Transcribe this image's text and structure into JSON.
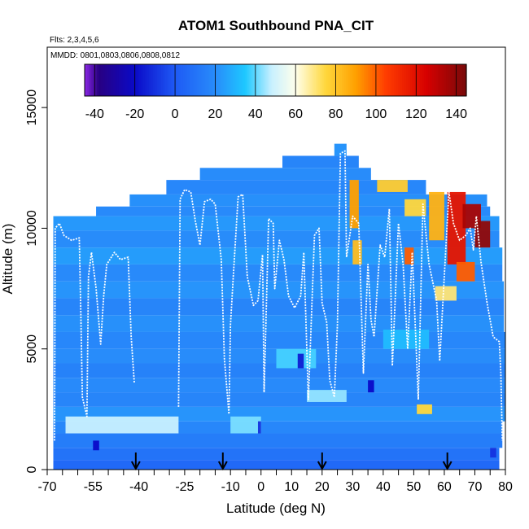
{
  "chart_data": {
    "type": "heatmap",
    "title": "ATOM1 Southbound PNA_CIT",
    "flights_label": "Flts: 2,3,4,5,6",
    "dates_label": "MMDD: 0801,0803,0806,0808,0812",
    "xlabel": "Latitude (deg N)",
    "ylabel": "Altitude (m)",
    "xlim": [
      -70,
      80
    ],
    "ylim": [
      0,
      17500
    ],
    "x_ticks": [
      -70,
      -55,
      -40,
      -25,
      -10,
      0,
      10,
      20,
      30,
      40,
      50,
      60,
      70,
      80
    ],
    "x_minor_ticks": [
      -65,
      -60,
      -50,
      -45,
      -35,
      -30,
      -20,
      -15,
      -5,
      5,
      15,
      25,
      35,
      45,
      55,
      65,
      75
    ],
    "y_ticks": [
      0,
      5000,
      10000,
      15000
    ],
    "colorbar": {
      "min": -45,
      "max": 145,
      "ticks": [
        -40,
        -20,
        0,
        20,
        40,
        60,
        80,
        100,
        120,
        140
      ],
      "boundaries": [
        -45,
        -40,
        -20,
        0,
        20,
        40,
        60,
        80,
        100,
        120,
        140,
        145
      ]
    },
    "arrow_latitudes": [
      -41,
      -12.5,
      20,
      61
    ],
    "flight_profiles": [
      {
        "name": "profile-1",
        "points": [
          [
            -67.6,
            1200
          ],
          [
            -67.4,
            10000
          ],
          [
            -66,
            10200
          ],
          [
            -64.5,
            9700
          ],
          [
            -62,
            9500
          ],
          [
            -59.5,
            9600
          ],
          [
            -59,
            6500
          ],
          [
            -58.5,
            3000
          ],
          [
            -57,
            2200
          ],
          [
            -56.5,
            8000
          ],
          [
            -55.5,
            9000
          ],
          [
            -54,
            7500
          ],
          [
            -52.5,
            5200
          ],
          [
            -51.5,
            7200
          ],
          [
            -50.5,
            8500
          ],
          [
            -48,
            9000
          ],
          [
            -46,
            8700
          ],
          [
            -43.5,
            8800
          ],
          [
            -42.5,
            5500
          ],
          [
            -41.5,
            3600
          ]
        ]
      },
      {
        "name": "profile-2",
        "points": [
          [
            -27,
            2600
          ],
          [
            -26.5,
            11200
          ],
          [
            -25,
            11600
          ],
          [
            -23,
            11500
          ],
          [
            -21.5,
            10300
          ],
          [
            -20,
            9300
          ],
          [
            -18.5,
            11100
          ],
          [
            -16.5,
            11200
          ],
          [
            -15,
            11000
          ],
          [
            -13,
            8700
          ],
          [
            -12,
            4600
          ],
          [
            -10.5,
            2300
          ],
          [
            -10,
            6000
          ],
          [
            -9,
            8200
          ],
          [
            -7.5,
            11300
          ],
          [
            -6,
            11400
          ],
          [
            -4.5,
            8000
          ],
          [
            -2.5,
            6800
          ],
          [
            -1,
            7000
          ],
          [
            0.5,
            8900
          ],
          [
            1,
            3200
          ],
          [
            2.5,
            10400
          ],
          [
            4,
            10200
          ],
          [
            4.5,
            7500
          ],
          [
            6,
            9500
          ],
          [
            7.5,
            8700
          ],
          [
            9,
            7200
          ],
          [
            11,
            6700
          ],
          [
            13,
            7200
          ],
          [
            14,
            9000
          ],
          [
            15.5,
            2900
          ],
          [
            17.5,
            9700
          ],
          [
            19,
            10000
          ],
          [
            20,
            6900
          ],
          [
            21.5,
            6100
          ],
          [
            22.5,
            3700
          ],
          [
            24,
            3000
          ],
          [
            25,
            6000
          ],
          [
            26,
            13100
          ],
          [
            27.5,
            13200
          ],
          [
            28,
            8800
          ],
          [
            30,
            10500
          ],
          [
            32,
            10200
          ],
          [
            33.5,
            4000
          ],
          [
            35,
            8500
          ],
          [
            36,
            6200
          ],
          [
            37,
            5500
          ],
          [
            39,
            9300
          ],
          [
            40.5,
            8800
          ],
          [
            42,
            10800
          ],
          [
            43,
            4300
          ],
          [
            45,
            10200
          ],
          [
            46.5,
            8500
          ],
          [
            48,
            5000
          ],
          [
            49.5,
            9000
          ],
          [
            51.5,
            2900
          ],
          [
            53,
            11000
          ],
          [
            55,
            8500
          ],
          [
            57.5,
            7000
          ],
          [
            58.5,
            4500
          ],
          [
            60,
            8000
          ],
          [
            61.5,
            11500
          ],
          [
            63,
            10200
          ],
          [
            65,
            9500
          ],
          [
            67,
            9700
          ],
          [
            68.5,
            10000
          ],
          [
            69.5,
            9100
          ],
          [
            70.5,
            10500
          ],
          [
            72,
            8600
          ],
          [
            74,
            6900
          ],
          [
            76,
            5500
          ],
          [
            78,
            5300
          ],
          [
            78.5,
            4000
          ],
          [
            79,
            1200
          ]
        ]
      }
    ],
    "curtain_bands": [
      {
        "alt_bottom": 0,
        "alt_top": 400,
        "xmin": -68,
        "xmax": 78,
        "value": 6
      },
      {
        "alt_bottom": 400,
        "alt_top": 900,
        "xmin": -68,
        "xmax": 78,
        "value": 10
      },
      {
        "alt_bottom": 900,
        "alt_top": 1500,
        "xmin": -68,
        "xmax": 79,
        "value": 14
      },
      {
        "alt_bottom": 1500,
        "alt_top": 2000,
        "xmin": -68,
        "xmax": 79,
        "value": 18
      },
      {
        "alt_bottom": 2000,
        "alt_top": 2600,
        "xmin": -68,
        "xmax": 80,
        "value": 22
      },
      {
        "alt_bottom": 2600,
        "alt_top": 3200,
        "xmin": -68,
        "xmax": 80,
        "value": 17
      },
      {
        "alt_bottom": 3200,
        "alt_top": 3800,
        "xmin": -68,
        "xmax": 80,
        "value": 19
      },
      {
        "alt_bottom": 3800,
        "alt_top": 4400,
        "xmin": -68,
        "xmax": 80,
        "value": 16
      },
      {
        "alt_bottom": 4400,
        "alt_top": 5000,
        "xmin": -68,
        "xmax": 80,
        "value": 20
      },
      {
        "alt_bottom": 5000,
        "alt_top": 5700,
        "xmin": -68,
        "xmax": 80,
        "value": 18
      },
      {
        "alt_bottom": 5700,
        "alt_top": 6400,
        "xmin": -68,
        "xmax": 79.5,
        "value": 21
      },
      {
        "alt_bottom": 6400,
        "alt_top": 7100,
        "xmin": -68,
        "xmax": 79.5,
        "value": 17
      },
      {
        "alt_bottom": 7100,
        "alt_top": 7800,
        "xmin": -68,
        "xmax": 79.5,
        "value": 22
      },
      {
        "alt_bottom": 7800,
        "alt_top": 8500,
        "xmin": -68,
        "xmax": 79,
        "value": 19
      },
      {
        "alt_bottom": 8500,
        "alt_top": 9200,
        "xmin": -68,
        "xmax": 79,
        "value": 24
      },
      {
        "alt_bottom": 9200,
        "alt_top": 9900,
        "xmin": -68,
        "xmax": 78,
        "value": 20
      },
      {
        "alt_bottom": 9900,
        "alt_top": 10500,
        "xmin": -68,
        "xmax": 78,
        "value": 23
      },
      {
        "alt_bottom": 10500,
        "alt_top": 10900,
        "xmin": -54,
        "xmax": 75,
        "value": 19
      },
      {
        "alt_bottom": 10900,
        "alt_top": 11400,
        "xmin": -43,
        "xmax": 74,
        "value": 21
      },
      {
        "alt_bottom": 11400,
        "alt_top": 12000,
        "xmin": -31,
        "xmax": 54,
        "value": 18
      },
      {
        "alt_bottom": 12000,
        "alt_top": 12500,
        "xmin": -20,
        "xmax": 36,
        "value": 20
      },
      {
        "alt_bottom": 12500,
        "alt_top": 13000,
        "xmin": 7,
        "xmax": 32,
        "value": 17
      },
      {
        "alt_bottom": 13000,
        "alt_top": 13500,
        "xmin": 24,
        "xmax": 28,
        "value": 22
      }
    ],
    "hotspots": [
      {
        "lat_min": 29,
        "lat_max": 32,
        "alt_min": 10000,
        "alt_max": 12000,
        "value": 90
      },
      {
        "lat_min": 30,
        "lat_max": 33,
        "alt_min": 8500,
        "alt_max": 9500,
        "value": 82
      },
      {
        "lat_min": 38,
        "lat_max": 48,
        "alt_min": 11500,
        "alt_max": 12000,
        "value": 78
      },
      {
        "lat_min": 47,
        "lat_max": 54,
        "alt_min": 10500,
        "alt_max": 11200,
        "value": 75
      },
      {
        "lat_min": 47,
        "lat_max": 50,
        "alt_min": 8500,
        "alt_max": 9200,
        "value": 100
      },
      {
        "lat_min": 55,
        "lat_max": 60,
        "alt_min": 9500,
        "alt_max": 11500,
        "value": 85
      },
      {
        "lat_min": 61,
        "lat_max": 67,
        "alt_min": 8500,
        "alt_max": 11500,
        "value": 118
      },
      {
        "lat_min": 66,
        "lat_max": 72,
        "alt_min": 10000,
        "alt_max": 11000,
        "value": 135
      },
      {
        "lat_min": 70,
        "lat_max": 75,
        "alt_min": 9200,
        "alt_max": 10300,
        "value": 140
      },
      {
        "lat_min": 64,
        "lat_max": 70,
        "alt_min": 7800,
        "alt_max": 8600,
        "value": 100
      },
      {
        "lat_min": 57,
        "lat_max": 64,
        "alt_min": 7000,
        "alt_max": 7600,
        "value": 70
      },
      {
        "lat_min": 51,
        "lat_max": 56,
        "alt_min": 2300,
        "alt_max": 2700,
        "value": 75
      },
      {
        "lat_min": -64,
        "lat_max": -27,
        "alt_min": 1500,
        "alt_max": 2200,
        "value": 48
      },
      {
        "lat_min": -10,
        "lat_max": 0,
        "alt_min": 1500,
        "alt_max": 2200,
        "value": 42
      },
      {
        "lat_min": 15,
        "lat_max": 28,
        "alt_min": 2800,
        "alt_max": 3300,
        "value": 44
      },
      {
        "lat_min": 5,
        "lat_max": 18,
        "alt_min": 4200,
        "alt_max": 5000,
        "value": 38
      },
      {
        "lat_min": 40,
        "lat_max": 55,
        "alt_min": 5000,
        "alt_max": 5800,
        "value": 32
      },
      {
        "lat_min": 12,
        "lat_max": 14,
        "alt_min": 4200,
        "alt_max": 4800,
        "value": -15
      },
      {
        "lat_min": 35,
        "lat_max": 37,
        "alt_min": 3200,
        "alt_max": 3700,
        "value": -20
      },
      {
        "lat_min": -1,
        "lat_max": 0,
        "alt_min": 1500,
        "alt_max": 2000,
        "value": -10
      },
      {
        "lat_min": -55,
        "lat_max": -53,
        "alt_min": 800,
        "alt_max": 1200,
        "value": -20
      },
      {
        "lat_min": 75,
        "lat_max": 77,
        "alt_min": 500,
        "alt_max": 900,
        "value": -10
      }
    ]
  }
}
